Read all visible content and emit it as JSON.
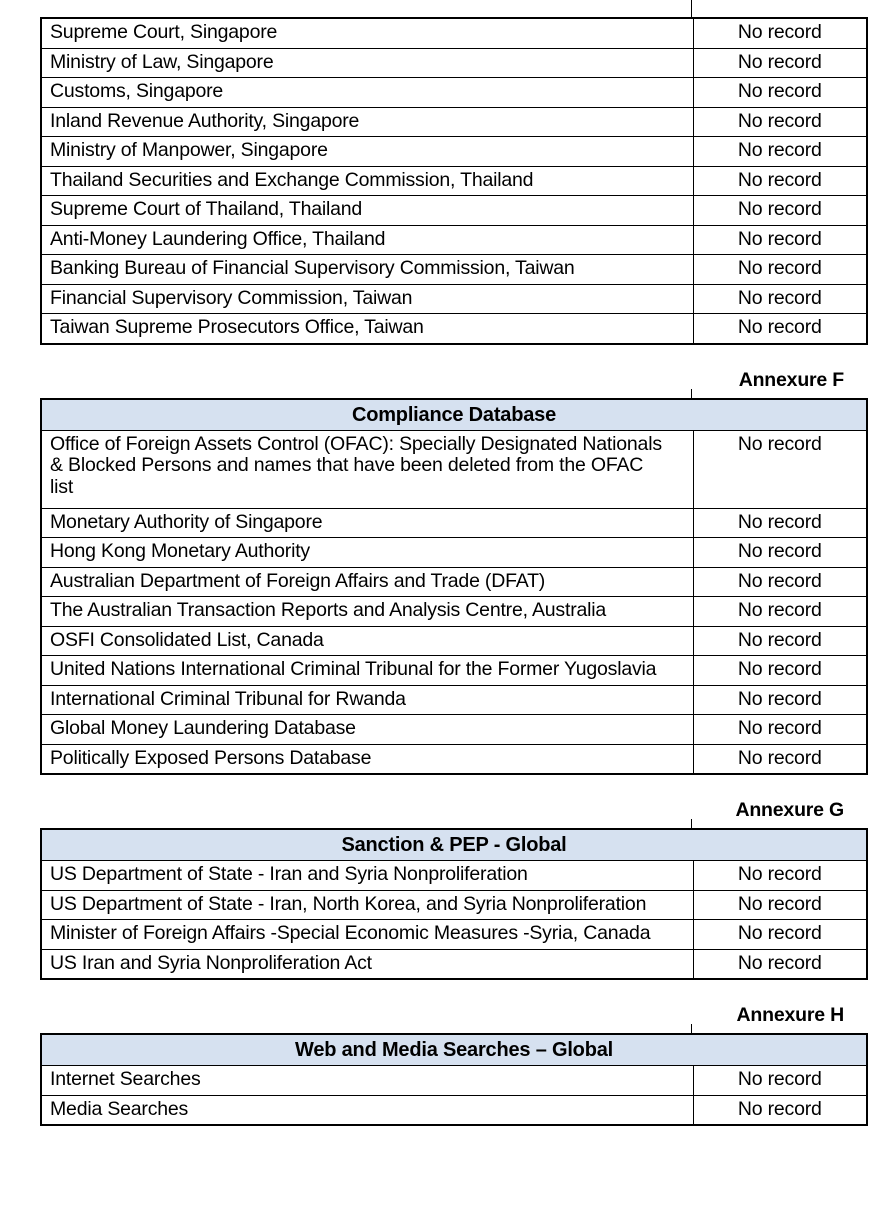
{
  "colors": {
    "table_header_fill": "#d6e1f0",
    "border": "#000000"
  },
  "result_value": "No record",
  "continuation": {
    "rows": [
      {
        "source": "Supreme Court, Singapore",
        "result": "No record"
      },
      {
        "source": "Ministry of Law, Singapore",
        "result": "No record"
      },
      {
        "source": "Customs, Singapore",
        "result": "No record"
      },
      {
        "source": "Inland Revenue Authority, Singapore",
        "result": "No record"
      },
      {
        "source": "Ministry of Manpower, Singapore",
        "result": "No record"
      },
      {
        "source": "Thailand Securities and Exchange Commission, Thailand",
        "result": "No record"
      },
      {
        "source": "Supreme Court of Thailand, Thailand",
        "result": "No record"
      },
      {
        "source": "Anti-Money Laundering Office, Thailand",
        "result": "No record"
      },
      {
        "source": "Banking Bureau of Financial Supervisory Commission, Taiwan",
        "result": "No record"
      },
      {
        "source": "Financial Supervisory Commission, Taiwan",
        "result": "No record"
      },
      {
        "source": "Taiwan Supreme Prosecutors Office, Taiwan",
        "result": "No record"
      }
    ]
  },
  "sections": [
    {
      "annexure": "Annexure F",
      "title": "Compliance Database",
      "rows": [
        {
          "source": "Office of Foreign Assets Control (OFAC): Specially Designated Nationals & Blocked Persons and names that have been deleted from the OFAC list",
          "result": "No record"
        },
        {
          "source": "Monetary Authority of Singapore",
          "result": "No record"
        },
        {
          "source": "Hong Kong Monetary Authority",
          "result": "No record"
        },
        {
          "source": "Australian Department of Foreign Affairs and Trade (DFAT)",
          "result": "No record"
        },
        {
          "source": "The Australian Transaction Reports and Analysis Centre, Australia",
          "result": "No record"
        },
        {
          "source": "OSFI Consolidated List, Canada",
          "result": "No record"
        },
        {
          "source": "United Nations International Criminal Tribunal for the Former Yugoslavia",
          "result": "No record"
        },
        {
          "source": "International Criminal Tribunal for Rwanda",
          "result": "No record"
        },
        {
          "source": "Global Money Laundering Database",
          "result": "No record"
        },
        {
          "source": "Politically Exposed Persons Database",
          "result": "No record"
        }
      ]
    },
    {
      "annexure": "Annexure G",
      "title": "Sanction & PEP - Global",
      "rows": [
        {
          "source": "US Department of State - Iran and Syria Nonproliferation",
          "result": "No record"
        },
        {
          "source": "US Department of State - Iran, North Korea, and Syria Nonproliferation",
          "result": "No record"
        },
        {
          "source": "Minister of Foreign Affairs -Special Economic Measures -Syria, Canada",
          "result": "No record"
        },
        {
          "source": "US Iran and Syria Nonproliferation Act",
          "result": "No record"
        }
      ]
    },
    {
      "annexure": "Annexure H",
      "title": "Web and Media Searches – Global",
      "rows": [
        {
          "source": "Internet Searches",
          "result": "No record"
        },
        {
          "source": "Media Searches",
          "result": "No record"
        }
      ]
    }
  ]
}
